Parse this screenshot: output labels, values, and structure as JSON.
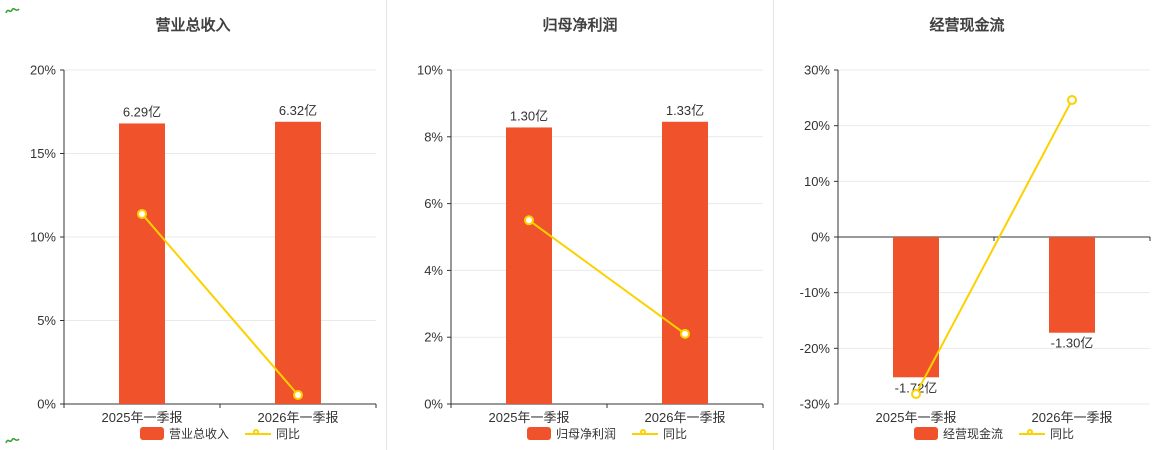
{
  "colors": {
    "bar": "#f0532b",
    "line": "#fdd100",
    "axis": "#333333",
    "grid": "#e9e9e9",
    "text": "#333333",
    "title": "#404040",
    "decor": "#3ca23c"
  },
  "chart_data": [
    {
      "type": "bar",
      "title": "营业总收入",
      "categories": [
        "2025年一季报",
        "2026年一季报"
      ],
      "bars": {
        "name": "营业总收入",
        "labels": [
          "6.29亿",
          "6.32亿"
        ],
        "heights_pct": [
          16.8,
          16.9
        ]
      },
      "line": {
        "name": "同比",
        "values_pct": [
          11.38,
          0.54
        ]
      },
      "ylim": [
        0,
        20
      ],
      "ytick_step": 5,
      "ytick_labels": [
        "0%",
        "5%",
        "10%",
        "15%",
        "20%"
      ],
      "grid": true,
      "legend_position": "bottom"
    },
    {
      "type": "bar",
      "title": "归母净利润",
      "categories": [
        "2025年一季报",
        "2026年一季报"
      ],
      "bars": {
        "name": "归母净利润",
        "labels": [
          "1.30亿",
          "1.33亿"
        ],
        "heights_pct": [
          8.28,
          8.45
        ]
      },
      "line": {
        "name": "同比",
        "values_pct": [
          5.5,
          2.1
        ]
      },
      "ylim": [
        0,
        10
      ],
      "ytick_step": 2,
      "ytick_labels": [
        "0%",
        "2%",
        "4%",
        "6%",
        "8%",
        "10%"
      ],
      "grid": true,
      "legend_position": "bottom"
    },
    {
      "type": "bar",
      "title": "经营现金流",
      "categories": [
        "2025年一季报",
        "2026年一季报"
      ],
      "bars": {
        "name": "经营现金流",
        "labels": [
          "-1.72亿",
          "-1.30亿"
        ],
        "heights_pct": [
          -25.2,
          -17.2
        ]
      },
      "line": {
        "name": "同比",
        "values_pct": [
          -28.2,
          24.6
        ]
      },
      "ylim": [
        -30,
        30
      ],
      "ytick_step": 10,
      "ytick_labels": [
        "-30%",
        "-20%",
        "-10%",
        "0%",
        "10%",
        "20%",
        "30%"
      ],
      "grid": true,
      "legend_position": "bottom"
    }
  ]
}
